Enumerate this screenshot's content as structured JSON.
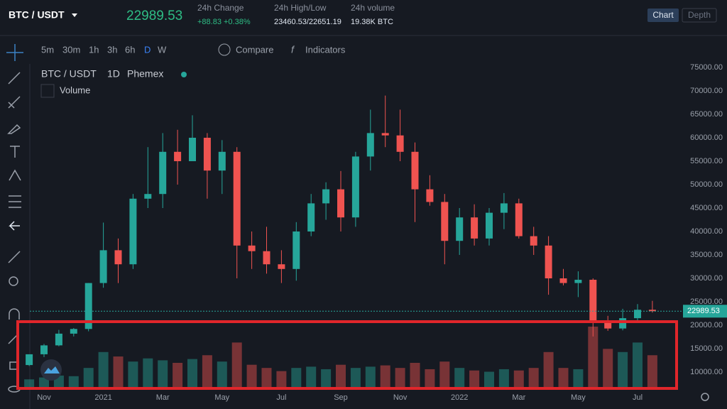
{
  "header": {
    "pair": "BTC / USDT",
    "price": "22989.53",
    "stats": [
      {
        "label": "24h Change",
        "value": "+88.83 +0.38%"
      },
      {
        "label": "24h High/Low",
        "value": "23460.53/22651.19"
      },
      {
        "label": "24h volume",
        "value": "19.38K BTC"
      }
    ],
    "tabs": [
      "Chart",
      "Depth"
    ]
  },
  "toolbar": {
    "intervals": [
      "5m",
      "30m",
      "1h",
      "3h",
      "6h",
      "D",
      "W"
    ],
    "buttons": [
      "Compare",
      "Indicators"
    ]
  },
  "legend": {
    "symbol": "BTC / USDT",
    "interval": "1D",
    "exchange": "Phemex",
    "study": "Volume"
  },
  "chart_data": {
    "type": "candlestick",
    "up_color": "#26a69a",
    "down_color": "#ef5350",
    "current_price": 22989.53,
    "current_price_label": "22989.53",
    "x": [
      -0.5,
      0,
      0.5,
      1,
      1.5,
      2,
      2.5,
      3,
      3.5,
      4,
      4.5,
      5,
      5.5,
      6,
      6.5,
      7,
      7.5,
      8,
      8.5,
      9,
      9.5,
      10,
      10.5,
      11,
      11.5,
      12,
      12.5,
      13,
      13.5,
      14,
      14.5,
      15,
      15.5,
      16,
      16.5,
      17,
      17.5,
      18,
      18.5,
      19,
      19.5,
      20,
      20.5
    ],
    "open": [
      11500,
      13800,
      15700,
      18200,
      19200,
      29000,
      36000,
      33000,
      47000,
      48000,
      57000,
      55000,
      60000,
      53000,
      57000,
      37000,
      35800,
      33000,
      32000,
      40000,
      46000,
      49000,
      43000,
      56000,
      61000,
      60500,
      57000,
      49000,
      46300,
      38000,
      43000,
      38500,
      44000,
      46000,
      39000,
      37000,
      30000,
      29000,
      29700,
      21000,
      19300,
      21500,
      23300
    ],
    "high": [
      13200,
      16000,
      19000,
      19400,
      29000,
      41900,
      38500,
      48000,
      58000,
      61000,
      61700,
      64800,
      61000,
      59500,
      58000,
      40000,
      41000,
      36000,
      42000,
      48000,
      50500,
      52900,
      57000,
      66000,
      69000,
      66000,
      59000,
      52000,
      48000,
      45000,
      45800,
      45000,
      48200,
      47000,
      41000,
      39000,
      32000,
      31500,
      30000,
      22000,
      23500,
      24500,
      25200
    ],
    "low": [
      11300,
      13200,
      15500,
      17600,
      18700,
      28000,
      29000,
      32000,
      45000,
      45000,
      50000,
      55000,
      47000,
      48000,
      30000,
      32000,
      31000,
      29000,
      29500,
      39000,
      42500,
      40000,
      41000,
      53000,
      58000,
      55000,
      42000,
      45500,
      33000,
      35000,
      37000,
      37000,
      40500,
      38500,
      35000,
      26500,
      28500,
      26000,
      17600,
      18800,
      18900,
      20800,
      22700
    ],
    "close": [
      13800,
      15700,
      18200,
      19200,
      29000,
      36000,
      33000,
      47000,
      48000,
      57000,
      55000,
      60000,
      53000,
      57000,
      37000,
      35800,
      33000,
      32000,
      40000,
      46000,
      49000,
      43000,
      56000,
      61000,
      60500,
      57000,
      49000,
      46300,
      38000,
      43000,
      38500,
      44000,
      46000,
      39000,
      37000,
      30000,
      29000,
      29700,
      21000,
      19300,
      21500,
      23300,
      22989.53
    ],
    "volume": [
      12,
      15,
      18,
      17,
      30,
      55,
      48,
      40,
      45,
      42,
      38,
      44,
      50,
      40,
      70,
      35,
      30,
      25,
      30,
      32,
      28,
      35,
      30,
      32,
      34,
      30,
      38,
      28,
      40,
      30,
      26,
      24,
      28,
      26,
      30,
      55,
      30,
      28,
      95,
      60,
      55,
      70,
      50
    ],
    "ylim": [
      7000,
      77000
    ],
    "yticks": [
      {
        "value": 10000,
        "label": "10000.00"
      },
      {
        "value": 15000,
        "label": "15000.00"
      },
      {
        "value": 20000,
        "label": "20000.00"
      },
      {
        "value": 25000,
        "label": "25000.00"
      },
      {
        "value": 30000,
        "label": "30000.00"
      },
      {
        "value": 35000,
        "label": "35000.00"
      },
      {
        "value": 40000,
        "label": "40000.00"
      },
      {
        "value": 45000,
        "label": "45000.00"
      },
      {
        "value": 50000,
        "label": "50000.00"
      },
      {
        "value": 55000,
        "label": "55000.00"
      },
      {
        "value": 60000,
        "label": "60000.00"
      },
      {
        "value": 65000,
        "label": "65000.00"
      },
      {
        "value": 70000,
        "label": "70000.00"
      },
      {
        "value": 75000,
        "label": "75000.00"
      }
    ],
    "xlim": [
      -1,
      22
    ],
    "xticks": [
      {
        "value": 0,
        "label": "Nov"
      },
      {
        "value": 2,
        "label": "2021"
      },
      {
        "value": 4,
        "label": "Mar"
      },
      {
        "value": 6,
        "label": "May"
      },
      {
        "value": 8,
        "label": "Jul"
      },
      {
        "value": 10,
        "label": "Sep"
      },
      {
        "value": 12,
        "label": "Nov"
      },
      {
        "value": 14,
        "label": "2022"
      },
      {
        "value": 16,
        "label": "Mar"
      },
      {
        "value": 18,
        "label": "May"
      },
      {
        "value": 20,
        "label": "Jul"
      }
    ]
  }
}
